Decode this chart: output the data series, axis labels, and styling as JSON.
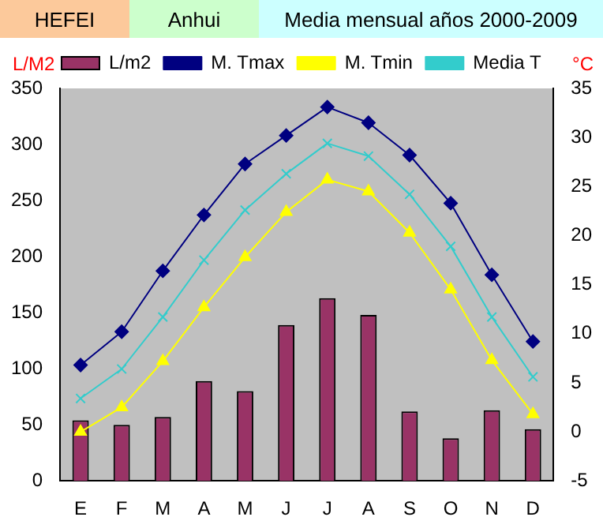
{
  "chart_data": {
    "type": "bar",
    "title": "HEFEI",
    "subtitle": "Anhui",
    "annotations": [
      "Media mensual años 2000-2009"
    ],
    "ylabel": "L/M2",
    "y2label": "°C",
    "categories": [
      "E",
      "F",
      "M",
      "A",
      "M",
      "J",
      "J",
      "A",
      "S",
      "O",
      "N",
      "D"
    ],
    "series": [
      {
        "name": "L/m2",
        "color": "#993366",
        "values": [
          54,
          50,
          57,
          89,
          80,
          139,
          163,
          148,
          62,
          38,
          63,
          46
        ]
      },
      {
        "name": "M. Tmax",
        "type": "line",
        "axis": "y2",
        "marker": "diamond",
        "color": "#000080",
        "values": [
          6.8,
          10.2,
          16.4,
          22.1,
          27.3,
          30.2,
          33.1,
          31.5,
          28.2,
          23.3,
          16.0,
          9.2
        ]
      },
      {
        "name": "M. Tmin",
        "type": "line",
        "axis": "y2",
        "marker": "triangle",
        "color": "#ffff00",
        "values": [
          0,
          2.5,
          7.2,
          12.7,
          17.8,
          22.4,
          25.7,
          24.5,
          20.3,
          14.5,
          7.3,
          1.8
        ]
      },
      {
        "name": "Media T",
        "type": "line",
        "axis": "y2",
        "marker": "cross",
        "color": "#33cccc",
        "values": [
          3.4,
          6.4,
          11.7,
          17.5,
          22.6,
          26.3,
          29.4,
          28.1,
          24.2,
          18.9,
          11.7,
          5.6
        ]
      }
    ],
    "ylim": [
      0,
      350
    ],
    "yticks": [
      0,
      50,
      100,
      150,
      200,
      250,
      300,
      350
    ],
    "y2lim": [
      -5,
      35
    ],
    "y2ticks": [
      -5,
      0,
      5,
      10,
      15,
      20,
      25,
      30,
      35
    ],
    "grid": false,
    "legend": "top"
  }
}
